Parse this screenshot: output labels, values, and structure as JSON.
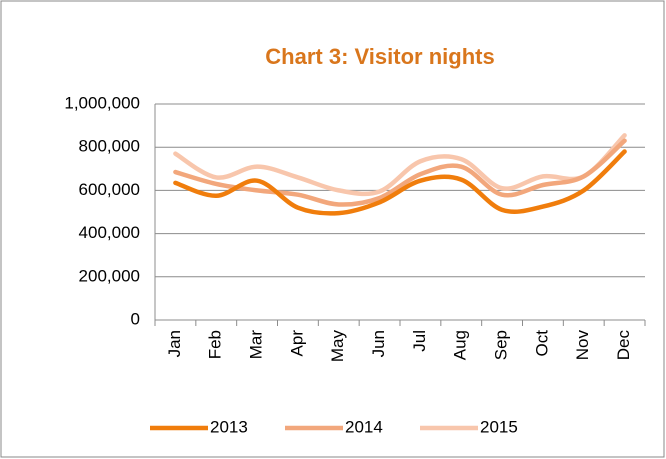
{
  "chart_data": {
    "type": "line",
    "title": "Chart 3: Visitor nights",
    "categories": [
      "Jan",
      "Feb",
      "Mar",
      "Apr",
      "May",
      "Jun",
      "Jul",
      "Aug",
      "Sep",
      "Oct",
      "Nov",
      "Dec"
    ],
    "series": [
      {
        "name": "2013",
        "color": "#f07d0c",
        "values": [
          635000,
          575000,
          645000,
          520000,
          495000,
          545000,
          645000,
          650000,
          510000,
          525000,
          600000,
          780000
        ]
      },
      {
        "name": "2014",
        "color": "#f2a77c",
        "values": [
          685000,
          630000,
          600000,
          580000,
          535000,
          565000,
          675000,
          710000,
          580000,
          625000,
          665000,
          830000
        ]
      },
      {
        "name": "2015",
        "color": "#f8c6ac",
        "values": [
          770000,
          660000,
          710000,
          660000,
          600000,
          595000,
          735000,
          745000,
          610000,
          665000,
          665000,
          855000
        ]
      }
    ],
    "ylim": [
      0,
      1000000
    ],
    "yticks": [
      0,
      {
        "value": 200000,
        "label": "200,000"
      },
      {
        "value": 400000,
        "label": "400,000"
      },
      {
        "value": 600000,
        "label": "600,000"
      },
      {
        "value": 800000,
        "label": "800,000"
      },
      {
        "value": 1000000,
        "label": "1,000,000"
      }
    ],
    "grid": true,
    "legend": "bottom"
  }
}
